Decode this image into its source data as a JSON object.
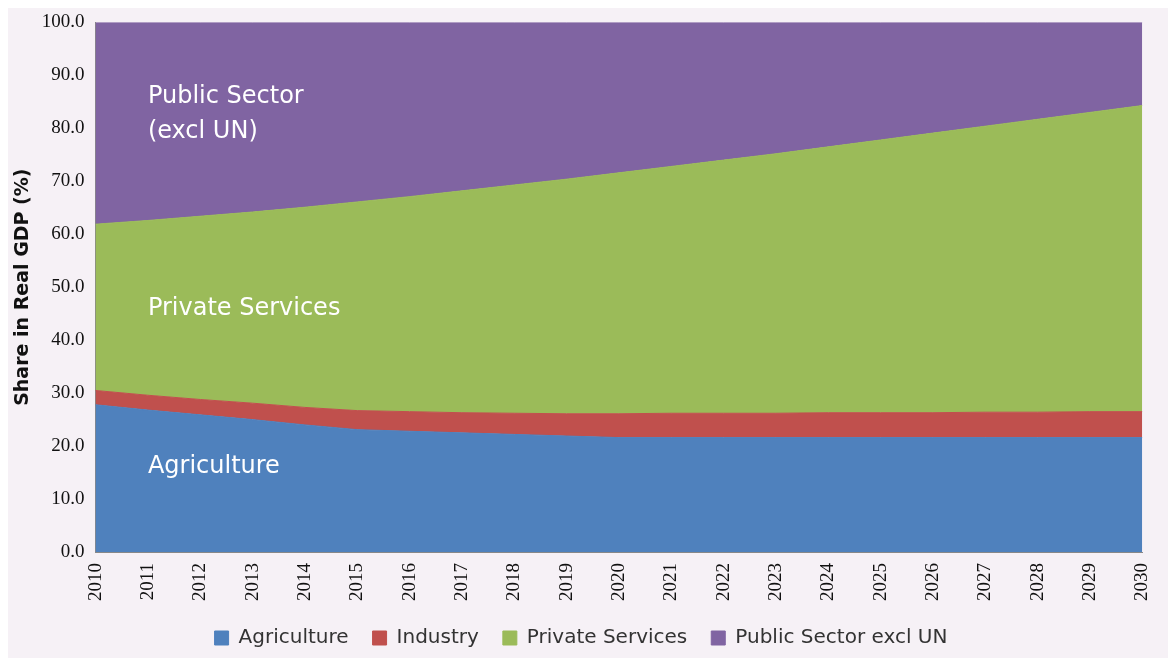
{
  "chart_data": {
    "type": "area",
    "stacked": true,
    "ylabel": "Share in Real GDP (%)",
    "categories": [
      "2010",
      "2011",
      "2012",
      "2013",
      "2014",
      "2015",
      "2016",
      "2017",
      "2018",
      "2019",
      "2020",
      "2021",
      "2022",
      "2023",
      "2024",
      "2025",
      "2026",
      "2027",
      "2028",
      "2029",
      "2030"
    ],
    "series": [
      {
        "name": "Agriculture",
        "color": "#4f81bd",
        "values": [
          27.8,
          26.8,
          25.9,
          25.0,
          24.0,
          23.1,
          22.8,
          22.5,
          22.2,
          21.9,
          21.6,
          21.6,
          21.6,
          21.6,
          21.6,
          21.6,
          21.6,
          21.6,
          21.6,
          21.6,
          21.6
        ]
      },
      {
        "name": "Industry",
        "color": "#c0504d",
        "values": [
          2.7,
          2.8,
          2.9,
          3.1,
          3.3,
          3.6,
          3.7,
          3.8,
          4.0,
          4.2,
          4.5,
          4.6,
          4.6,
          4.6,
          4.7,
          4.7,
          4.7,
          4.8,
          4.8,
          4.9,
          4.9
        ]
      },
      {
        "name": "Private Services",
        "color": "#9bbb59",
        "values": [
          31.4,
          33.0,
          34.6,
          36.1,
          37.8,
          39.4,
          40.6,
          41.9,
          43.1,
          44.3,
          45.5,
          46.6,
          47.8,
          49.0,
          50.2,
          51.5,
          52.8,
          54.0,
          55.3,
          56.5,
          57.8
        ]
      },
      {
        "name": "Public Sector excl UN",
        "color": "#8064a2",
        "values": [
          38.1,
          37.4,
          36.6,
          35.8,
          34.9,
          33.9,
          32.9,
          31.8,
          30.7,
          29.6,
          28.4,
          27.2,
          26.0,
          24.8,
          23.5,
          22.2,
          20.9,
          19.6,
          18.3,
          17.0,
          15.7
        ]
      }
    ],
    "ylim": [
      0,
      100
    ],
    "yticks": [
      {
        "value": 0,
        "label": "0.0"
      },
      {
        "value": 10,
        "label": "10.0"
      },
      {
        "value": 20,
        "label": "20.0"
      },
      {
        "value": 30,
        "label": "30.0"
      },
      {
        "value": 40,
        "label": "40.0"
      },
      {
        "value": 50,
        "label": "50.0"
      },
      {
        "value": 60,
        "label": "60.0"
      },
      {
        "value": 70,
        "label": "70.0"
      },
      {
        "value": 80,
        "label": "80.0"
      },
      {
        "value": 90,
        "label": "90.0"
      },
      {
        "value": 100,
        "label": "100.0"
      }
    ],
    "grid": false,
    "legend": "bottom",
    "annotations": [
      "Public Sector\n(excl UN)",
      "Private Services",
      "Agriculture"
    ]
  }
}
